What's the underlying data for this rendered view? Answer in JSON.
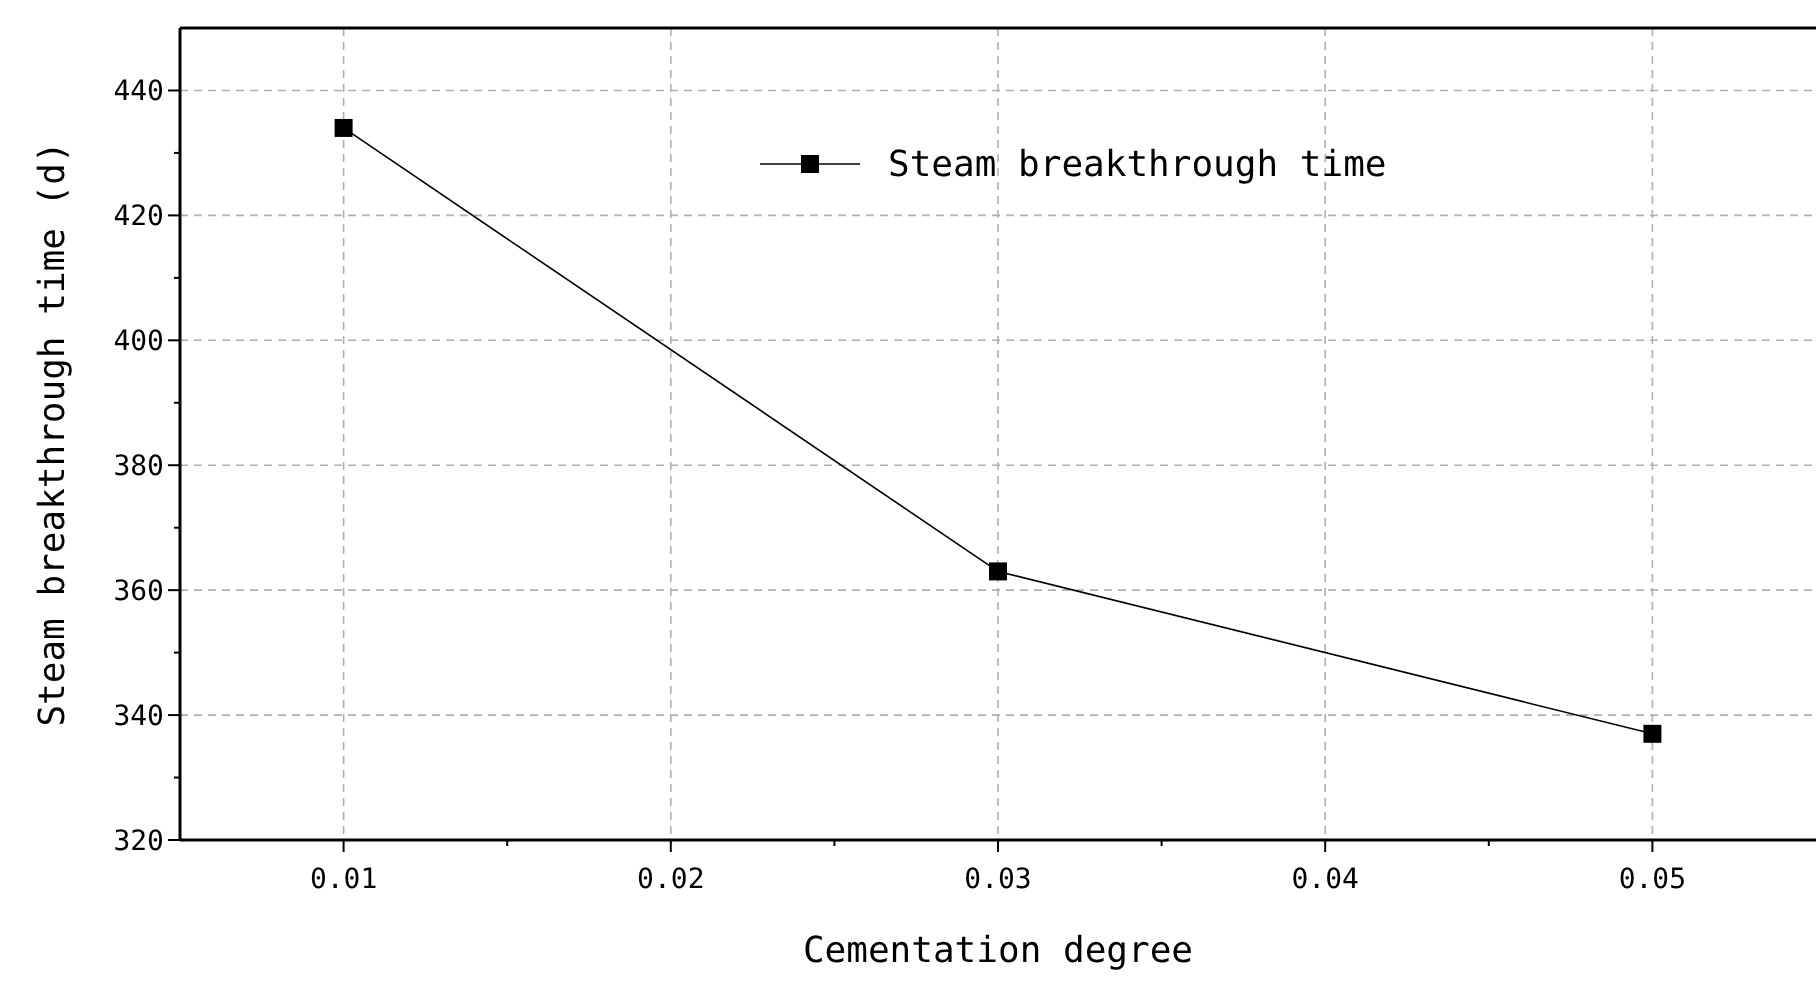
{
  "chart_data": {
    "type": "line",
    "xlabel": "Cementation degree",
    "ylabel": "Steam breakthrough time (d)",
    "x": [
      0.01,
      0.03,
      0.05
    ],
    "series": [
      {
        "name": "Steam breakthrough time",
        "color": "#000000",
        "values": [
          434,
          363,
          337
        ]
      }
    ],
    "xlim": [
      0.005,
      0.055
    ],
    "xticks": [
      {
        "value": 0.01,
        "label": "0.01"
      },
      {
        "value": 0.02,
        "label": "0.02"
      },
      {
        "value": 0.03,
        "label": "0.03"
      },
      {
        "value": 0.04,
        "label": "0.04"
      },
      {
        "value": 0.05,
        "label": "0.05"
      }
    ],
    "ylim": [
      320,
      450
    ],
    "yticks": [
      320,
      340,
      360,
      380,
      400,
      420,
      440
    ],
    "grid": true,
    "legend": "top right",
    "marker": "square",
    "line_style": "solid"
  }
}
